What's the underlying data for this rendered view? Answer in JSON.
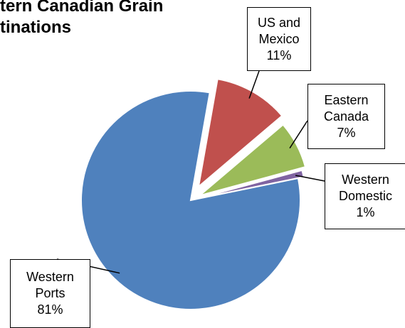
{
  "chart_data": {
    "type": "pie",
    "title_lines": [
      "tern Canadian Grain",
      "tinations"
    ],
    "categories": [
      "US and Mexico",
      "Eastern Canada",
      "Western Domestic",
      "Western Ports"
    ],
    "values": [
      11,
      7,
      1,
      81
    ],
    "value_labels": [
      "11%",
      "7%",
      "1%",
      "81%"
    ],
    "colors": [
      "#c0504d",
      "#9bbb59",
      "#8064a2",
      "#4f81bd"
    ],
    "exploded": [
      true,
      true,
      true,
      false
    ]
  }
}
